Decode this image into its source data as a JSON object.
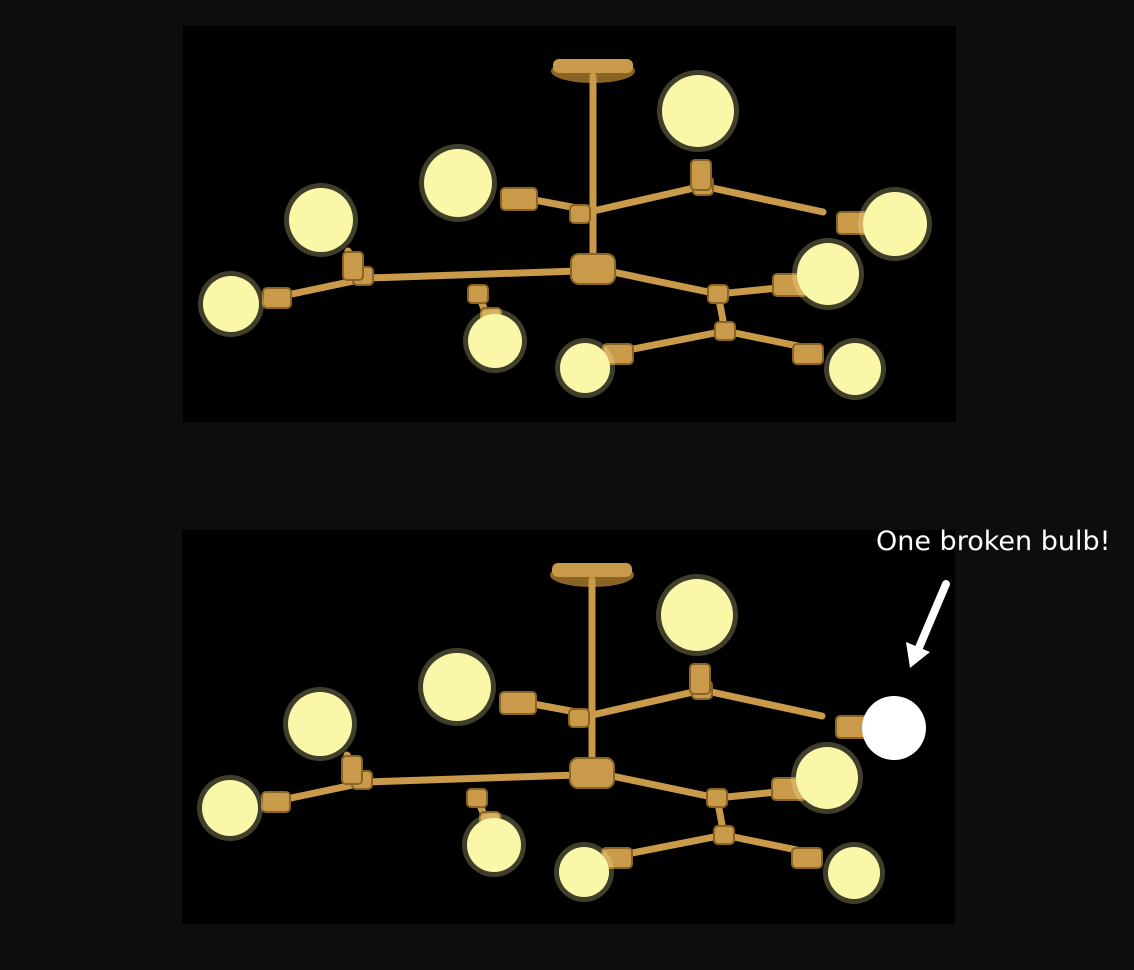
{
  "scenes": [
    {
      "name": "chandelier-all-lit",
      "bulbs": [
        {
          "name": "bulb-top-center",
          "state": "lit"
        },
        {
          "name": "bulb-upper-left",
          "state": "lit"
        },
        {
          "name": "bulb-upper-right",
          "state": "lit"
        },
        {
          "name": "bulb-left-high",
          "state": "lit"
        },
        {
          "name": "bulb-left-low",
          "state": "lit"
        },
        {
          "name": "bulb-center-low",
          "state": "lit"
        },
        {
          "name": "bulb-right-mid",
          "state": "lit"
        },
        {
          "name": "bulb-bottom-center",
          "state": "lit"
        },
        {
          "name": "bulb-bottom-right",
          "state": "lit"
        }
      ]
    },
    {
      "name": "chandelier-one-broken",
      "bulbs": [
        {
          "name": "bulb-top-center",
          "state": "lit"
        },
        {
          "name": "bulb-upper-left",
          "state": "lit"
        },
        {
          "name": "bulb-upper-right",
          "state": "broken"
        },
        {
          "name": "bulb-left-high",
          "state": "lit"
        },
        {
          "name": "bulb-left-low",
          "state": "lit"
        },
        {
          "name": "bulb-center-low",
          "state": "lit"
        },
        {
          "name": "bulb-right-mid",
          "state": "lit"
        },
        {
          "name": "bulb-bottom-center",
          "state": "lit"
        },
        {
          "name": "bulb-bottom-right",
          "state": "lit"
        }
      ]
    }
  ],
  "annotation": {
    "text": "One broken bulb!"
  },
  "colors": {
    "background": "#0d0d0d",
    "panel": "#000000",
    "brass": "#c89a4a",
    "brass_dark": "#8a6424",
    "bulb_lit": "#fbf7a8",
    "bulb_broken": "#ffffff",
    "annotation": "#ffffff"
  }
}
